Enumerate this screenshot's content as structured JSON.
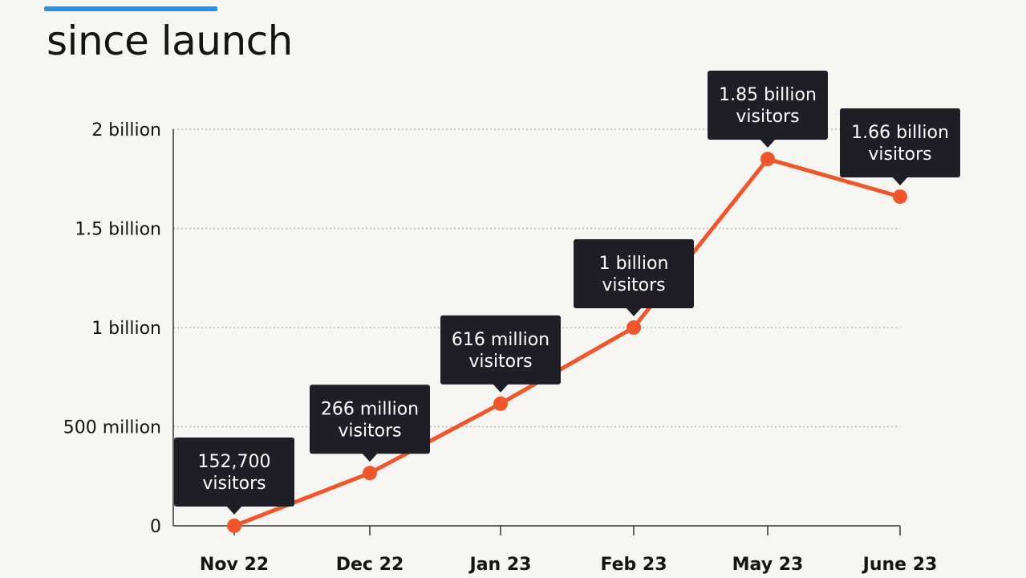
{
  "title": "since launch",
  "colors": {
    "line": "#f0562b",
    "callout": "#1e1f26",
    "grid": "#b8b8b8",
    "accent": "#2f8fdb"
  },
  "chart_data": {
    "type": "line",
    "categories": [
      "Nov 22",
      "Dec 22",
      "Jan 23",
      "Feb 23",
      "May 23",
      "June 23"
    ],
    "values": [
      152700,
      266000000,
      616000000,
      1000000000,
      1850000000,
      1660000000
    ],
    "labels": [
      [
        "152,700",
        "visitors"
      ],
      [
        "266 million",
        "visitors"
      ],
      [
        "616 million",
        "visitors"
      ],
      [
        "1 billion",
        "visitors"
      ],
      [
        "1.85 billion",
        "visitors"
      ],
      [
        "1.66 billion",
        "visitors"
      ]
    ],
    "yticks": [
      {
        "value": 0,
        "label": "0"
      },
      {
        "value": 500000000,
        "label": "500 million"
      },
      {
        "value": 1000000000,
        "label": "1 billion"
      },
      {
        "value": 1500000000,
        "label": "1.5 billion"
      },
      {
        "value": 2000000000,
        "label": "2 billion"
      }
    ],
    "ylim": [
      0,
      2000000000
    ],
    "grid": true
  }
}
